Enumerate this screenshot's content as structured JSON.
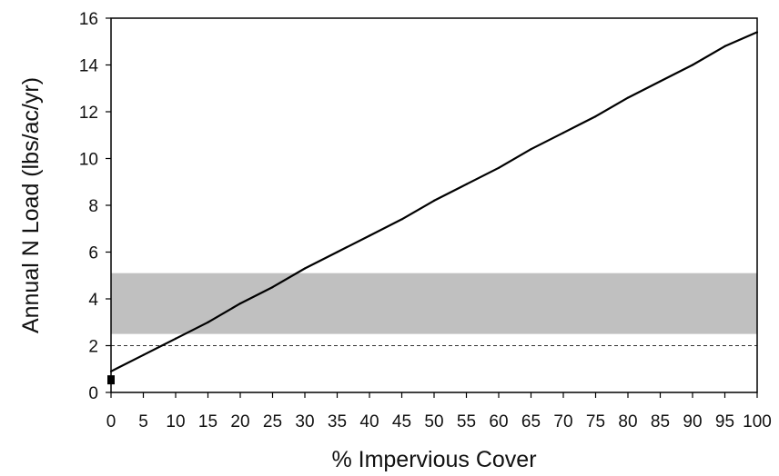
{
  "chart_data": {
    "type": "line",
    "title": "",
    "xlabel": "% Impervious Cover",
    "ylabel": "Annual N Load (lbs/ac/yr)",
    "xlim": [
      0,
      100
    ],
    "ylim": [
      0,
      16
    ],
    "x_ticks": [
      0,
      5,
      10,
      15,
      20,
      25,
      30,
      35,
      40,
      45,
      50,
      55,
      60,
      65,
      70,
      75,
      80,
      85,
      90,
      95,
      100
    ],
    "y_ticks": [
      0,
      2,
      4,
      6,
      8,
      10,
      12,
      14,
      16
    ],
    "grid": false,
    "series": [
      {
        "x": [
          0,
          5,
          10,
          15,
          20,
          25,
          30,
          35,
          40,
          45,
          50,
          55,
          60,
          65,
          70,
          75,
          80,
          85,
          90,
          95,
          100
        ],
        "y": [
          0.9,
          1.6,
          2.3,
          3.0,
          3.8,
          4.5,
          5.3,
          6.0,
          6.7,
          7.4,
          8.2,
          8.9,
          9.6,
          10.4,
          11.1,
          11.8,
          12.6,
          13.3,
          14.0,
          14.8,
          15.4
        ]
      }
    ],
    "shaded_band": {
      "y_range": [
        2.5,
        5.1
      ],
      "color": "#c0c0c0"
    },
    "reference_line": {
      "y": 2.0,
      "style": "dashed"
    },
    "marker_at_origin": {
      "x": 0,
      "y": 0.5
    },
    "colors": {
      "line": "#000000",
      "band": "#c0c0c0",
      "axis": "#000000"
    }
  }
}
